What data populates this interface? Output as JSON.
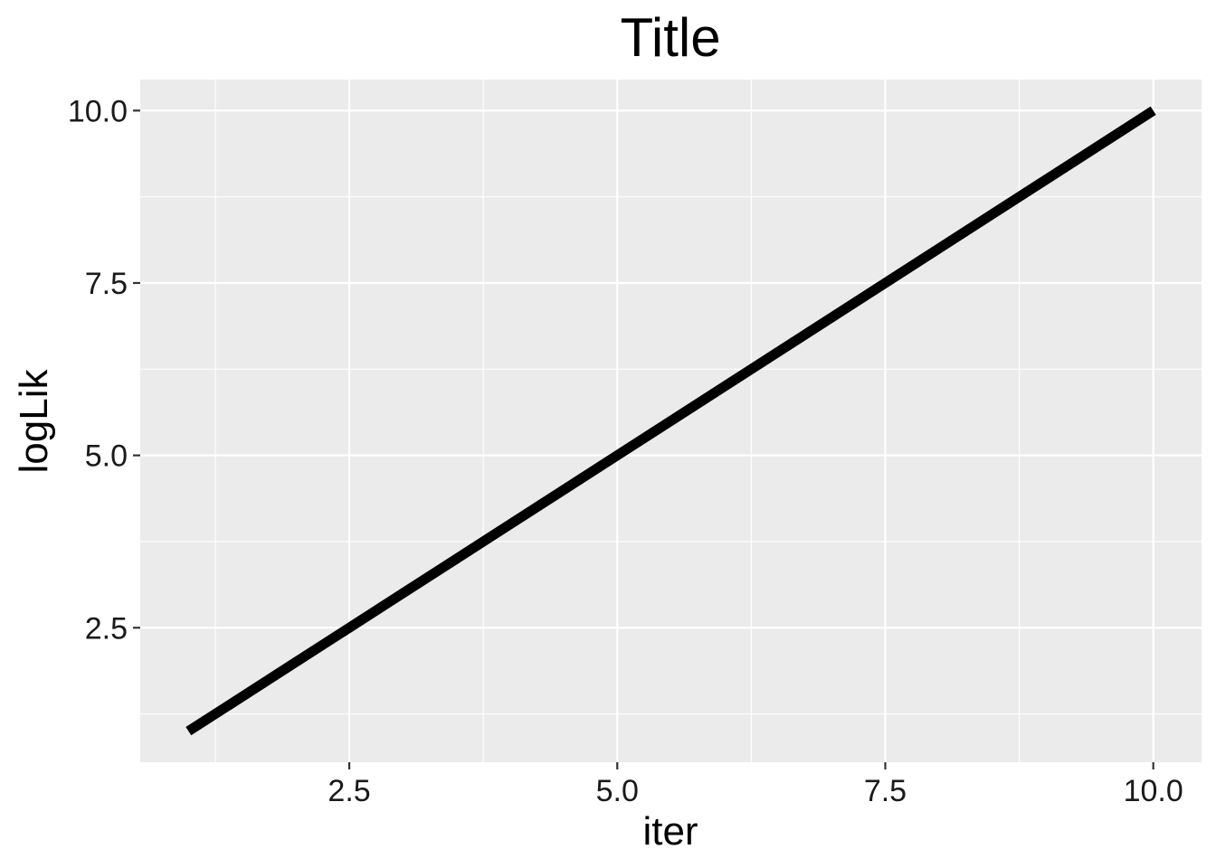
{
  "chart_data": {
    "type": "line",
    "title": "Title",
    "xlabel": "iter",
    "ylabel": "logLik",
    "x": [
      1,
      2,
      3,
      4,
      5,
      6,
      7,
      8,
      9,
      10
    ],
    "series": [
      {
        "values": [
          1,
          2,
          3,
          4,
          5,
          6,
          7,
          8,
          9,
          10
        ],
        "color": "#000000"
      }
    ],
    "xlim": [
      0.55,
      10.45
    ],
    "ylim": [
      0.55,
      10.45
    ],
    "xticks": [
      2.5,
      5.0,
      7.5,
      10.0
    ],
    "xtick_labels": [
      "2.5",
      "5.0",
      "7.5",
      "10.0"
    ],
    "yticks": [
      2.5,
      5.0,
      7.5,
      10.0
    ],
    "ytick_labels": [
      "2.5",
      "5.0",
      "7.5",
      "10.0"
    ],
    "grid": true,
    "legend": "none",
    "panel_background": "#ebebeb",
    "grid_color": "#ffffff"
  }
}
